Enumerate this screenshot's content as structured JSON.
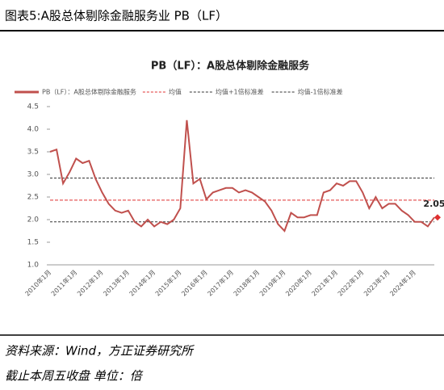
{
  "header_title": "图表5:A股总体剔除金融服务业 PB（LF）",
  "chart_data": {
    "type": "line",
    "title": "PB（LF）：A股总体剔除金融服务",
    "categories": [
      "2010年1月",
      null,
      null,
      null,
      "2011年1月",
      null,
      null,
      null,
      "2012年1月",
      null,
      null,
      null,
      "2013年1月",
      null,
      null,
      null,
      "2014年1月",
      null,
      null,
      null,
      "2015年1月",
      null,
      null,
      null,
      "2016年1月",
      null,
      null,
      null,
      "2017年1月",
      null,
      null,
      null,
      "2018年1月",
      null,
      null,
      null,
      "2019年1月",
      null,
      null,
      null,
      "2020年1月",
      null,
      null,
      null,
      "2021年1月",
      null,
      null,
      null,
      "2022年1月",
      null,
      null,
      null,
      "2023年1月",
      null,
      null,
      null,
      "2024年1月",
      null,
      null,
      null
    ],
    "series": [
      {
        "name": "PB（LF）：A股总体剔除金融服务",
        "color": "#c0504d",
        "values": [
          3.5,
          3.55,
          2.8,
          3.05,
          3.35,
          3.25,
          3.3,
          2.9,
          2.6,
          2.35,
          2.2,
          2.15,
          2.2,
          1.95,
          1.85,
          2.0,
          1.85,
          1.95,
          1.9,
          2.0,
          2.25,
          4.2,
          2.8,
          2.9,
          2.45,
          2.6,
          2.65,
          2.7,
          2.7,
          2.6,
          2.65,
          2.6,
          2.5,
          2.4,
          2.2,
          1.9,
          1.75,
          2.15,
          2.05,
          2.05,
          2.1,
          2.1,
          2.6,
          2.65,
          2.8,
          2.75,
          2.85,
          2.85,
          2.6,
          2.25,
          2.5,
          2.25,
          2.35,
          2.35,
          2.2,
          2.1,
          1.95,
          1.95,
          1.85,
          2.05
        ]
      }
    ],
    "reference_lines": [
      {
        "name": "均值",
        "value": 2.43,
        "color": "#e03030"
      },
      {
        "name": "均值+1倍标准差",
        "value": 2.92,
        "color": "#333333"
      },
      {
        "name": "均值-1倍标准差",
        "value": 1.95,
        "color": "#333333"
      }
    ],
    "annotation": {
      "text": "2.05",
      "color": "#e03030"
    },
    "ylim": [
      1,
      4.5
    ],
    "yticks": [
      {
        "value": 1,
        "label": "1.0"
      },
      1.5,
      {
        "value": 2,
        "label": "2.0"
      },
      2.5,
      {
        "value": 3,
        "label": "3.0"
      },
      3.5,
      {
        "value": 4,
        "label": "4.0"
      },
      4.5
    ]
  },
  "source": "资料来源：Wind，方正证券研究所",
  "note": "截止本周五收盘 单位：倍"
}
